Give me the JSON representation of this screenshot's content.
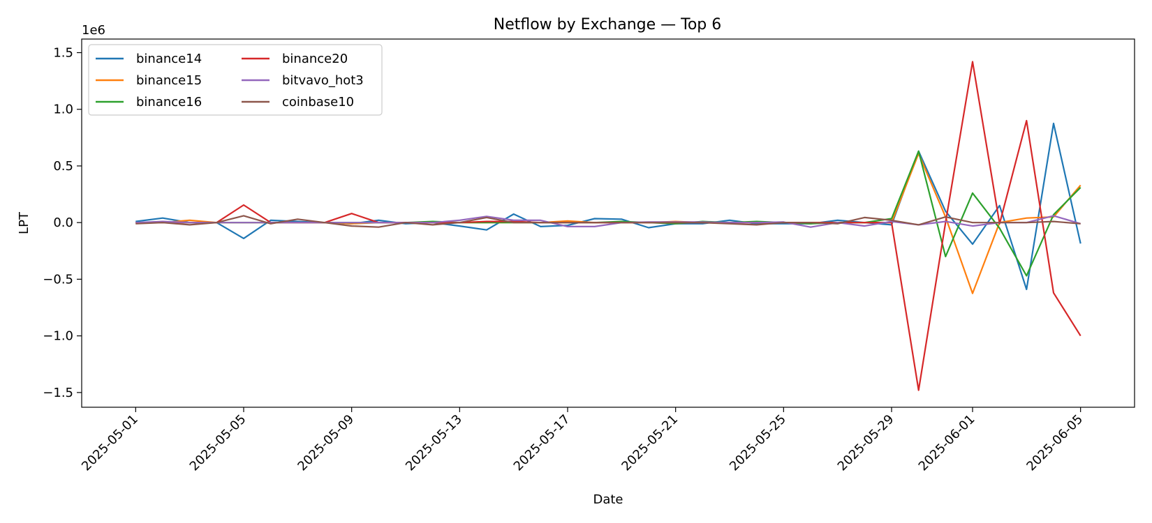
{
  "chart_data": {
    "type": "line",
    "title": "Netflow by Exchange — Top 6",
    "xlabel": "Date",
    "ylabel": "LPT",
    "y_offset_label": "1e6",
    "ylim": [
      -1.63,
      1.62
    ],
    "yticks": [
      -1.5,
      -1.0,
      -0.5,
      0.0,
      0.5,
      1.0,
      1.5
    ],
    "ytick_labels": [
      "−1.5",
      "−1.0",
      "−0.5",
      "0.0",
      "0.5",
      "1.0",
      "1.5"
    ],
    "x_range": [
      "2025-04-29",
      "2025-06-07"
    ],
    "xticks": [
      "2025-05-01",
      "2025-05-05",
      "2025-05-09",
      "2025-05-13",
      "2025-05-17",
      "2025-05-21",
      "2025-05-25",
      "2025-05-29",
      "2025-06-01",
      "2025-06-05"
    ],
    "x": [
      "2025-05-01",
      "2025-05-02",
      "2025-05-03",
      "2025-05-04",
      "2025-05-05",
      "2025-05-06",
      "2025-05-07",
      "2025-05-08",
      "2025-05-09",
      "2025-05-10",
      "2025-05-11",
      "2025-05-12",
      "2025-05-13",
      "2025-05-14",
      "2025-05-15",
      "2025-05-16",
      "2025-05-17",
      "2025-05-18",
      "2025-05-19",
      "2025-05-20",
      "2025-05-21",
      "2025-05-22",
      "2025-05-23",
      "2025-05-24",
      "2025-05-25",
      "2025-05-26",
      "2025-05-27",
      "2025-05-28",
      "2025-05-29",
      "2025-05-30",
      "2025-05-31",
      "2025-06-01",
      "2025-06-02",
      "2025-06-03",
      "2025-06-04",
      "2025-06-05"
    ],
    "legend_position": "top-left",
    "legend_columns": 2,
    "grid": false,
    "series": [
      {
        "name": "binance14",
        "color": "#1f77b4",
        "values": [
          0.01,
          0.04,
          0.0,
          0.0,
          -0.14,
          0.02,
          0.01,
          0.0,
          -0.01,
          0.02,
          -0.01,
          0.0,
          -0.03,
          -0.065,
          0.075,
          -0.035,
          -0.025,
          0.035,
          0.03,
          -0.045,
          -0.01,
          -0.01,
          0.02,
          -0.01,
          -0.01,
          -0.01,
          0.02,
          0.0,
          -0.02,
          0.63,
          0.1,
          -0.19,
          0.15,
          -0.59,
          0.875,
          -0.185
        ]
      },
      {
        "name": "binance15",
        "color": "#ff7f0e",
        "values": [
          0.0,
          0.0,
          0.02,
          0.0,
          0.0,
          0.0,
          0.0,
          0.0,
          -0.01,
          0.0,
          0.0,
          0.0,
          0.0,
          0.0,
          0.0,
          0.0,
          0.015,
          0.0,
          0.0,
          0.0,
          0.01,
          0.0,
          0.0,
          0.0,
          0.0,
          0.0,
          0.0,
          0.0,
          0.0,
          0.61,
          0.05,
          -0.625,
          0.0,
          0.04,
          0.05,
          0.33
        ]
      },
      {
        "name": "binance16",
        "color": "#2ca02c",
        "values": [
          0.0,
          0.0,
          0.0,
          0.0,
          0.0,
          0.0,
          0.0,
          0.0,
          0.0,
          0.0,
          0.0,
          0.01,
          0.0,
          0.0,
          0.0,
          0.0,
          0.0,
          0.0,
          0.01,
          0.0,
          -0.01,
          0.01,
          0.0,
          0.01,
          0.0,
          -0.01,
          0.0,
          0.0,
          0.035,
          0.63,
          -0.3,
          0.26,
          -0.05,
          -0.47,
          0.07,
          0.31
        ]
      },
      {
        "name": "binance20",
        "color": "#d62728",
        "values": [
          0.0,
          0.0,
          0.0,
          0.0,
          0.155,
          0.0,
          0.0,
          0.0,
          0.08,
          0.0,
          0.0,
          0.0,
          0.0,
          0.01,
          0.01,
          0.0,
          0.0,
          0.0,
          0.0,
          0.0,
          0.0,
          0.0,
          0.0,
          0.0,
          0.0,
          0.0,
          0.0,
          0.0,
          0.0,
          -1.48,
          0.0,
          1.42,
          -0.01,
          0.9,
          -0.62,
          -1.0
        ]
      },
      {
        "name": "bitvavo_hot3",
        "color": "#9467bd",
        "values": [
          0.0,
          0.01,
          0.0,
          0.0,
          0.0,
          0.0,
          0.0,
          0.0,
          0.0,
          0.0,
          0.0,
          0.0,
          0.02,
          0.055,
          0.02,
          0.02,
          -0.035,
          -0.035,
          0.0,
          0.005,
          0.005,
          0.005,
          0.0,
          0.0,
          0.005,
          -0.04,
          0.0,
          -0.03,
          0.01,
          -0.02,
          0.01,
          -0.03,
          0.0,
          0.0,
          0.06,
          -0.01
        ]
      },
      {
        "name": "coinbase10",
        "color": "#8c564b",
        "values": [
          -0.01,
          0.0,
          -0.02,
          0.0,
          0.06,
          -0.01,
          0.03,
          0.0,
          -0.03,
          -0.04,
          0.0,
          -0.02,
          0.0,
          0.045,
          0.0,
          0.0,
          0.0,
          0.0,
          0.0,
          0.0,
          0.0,
          0.0,
          -0.01,
          -0.02,
          0.0,
          0.0,
          -0.01,
          0.045,
          0.02,
          -0.02,
          0.05,
          0.0,
          0.0,
          0.0,
          0.01,
          -0.01
        ]
      }
    ]
  }
}
